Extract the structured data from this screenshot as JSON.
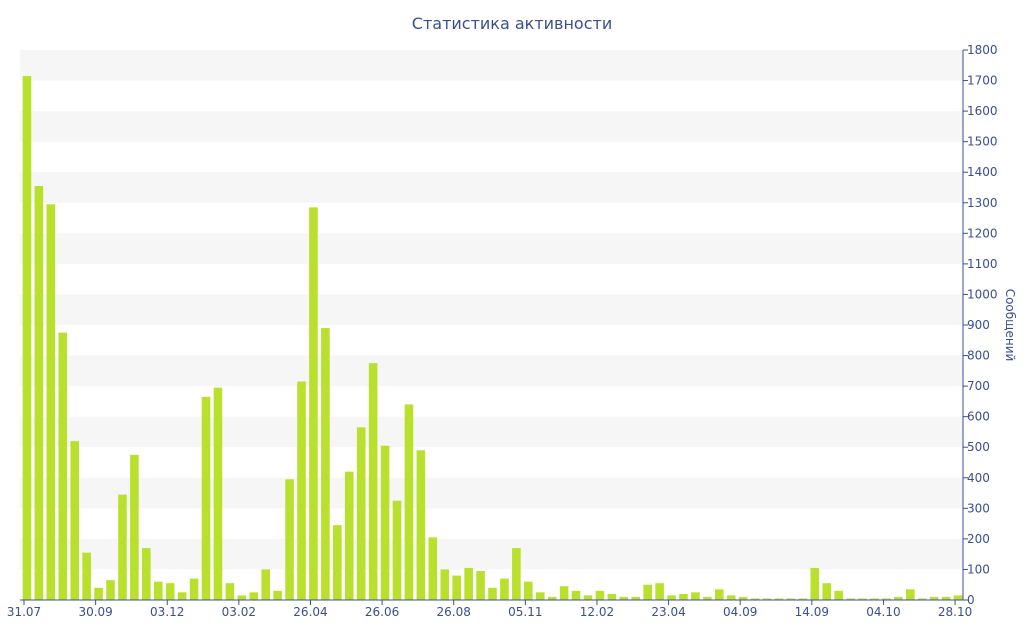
{
  "chart_data": {
    "type": "bar",
    "title": "Статистика активности",
    "xlabel": "",
    "ylabel": "Сообщений",
    "ylim": [
      0,
      1800
    ],
    "y_ticks": [
      0,
      100,
      200,
      300,
      400,
      500,
      600,
      700,
      800,
      900,
      1000,
      1100,
      1200,
      1300,
      1400,
      1500,
      1600,
      1700,
      1800
    ],
    "y_axis_side": "right",
    "x_tick_labels": [
      {
        "index": 0,
        "label": "31.07"
      },
      {
        "index": 6,
        "label": "30.09"
      },
      {
        "index": 12,
        "label": "03.12"
      },
      {
        "index": 18,
        "label": "03.02"
      },
      {
        "index": 24,
        "label": "26.04"
      },
      {
        "index": 30,
        "label": "26.06"
      },
      {
        "index": 36,
        "label": "26.08"
      },
      {
        "index": 42,
        "label": "05.11"
      },
      {
        "index": 48,
        "label": "12.02"
      },
      {
        "index": 54,
        "label": "23.04"
      },
      {
        "index": 60,
        "label": "04.09"
      },
      {
        "index": 66,
        "label": "14.09"
      },
      {
        "index": 72,
        "label": "04.10"
      },
      {
        "index": 78,
        "label": "28.10"
      }
    ],
    "grid": "horizontal bands",
    "bar_color": "#b8e02c",
    "values": [
      1715,
      1355,
      1295,
      875,
      520,
      155,
      40,
      65,
      345,
      475,
      170,
      60,
      55,
      25,
      70,
      665,
      695,
      55,
      15,
      25,
      100,
      30,
      395,
      715,
      1285,
      890,
      245,
      420,
      565,
      775,
      505,
      325,
      640,
      490,
      205,
      100,
      80,
      105,
      95,
      40,
      70,
      170,
      60,
      25,
      10,
      45,
      30,
      15,
      30,
      20,
      10,
      10,
      50,
      55,
      15,
      20,
      25,
      10,
      35,
      15,
      10,
      5,
      5,
      5,
      5,
      5,
      105,
      55,
      30,
      5,
      5,
      5,
      5,
      10,
      35,
      5,
      10,
      10,
      15
    ]
  }
}
